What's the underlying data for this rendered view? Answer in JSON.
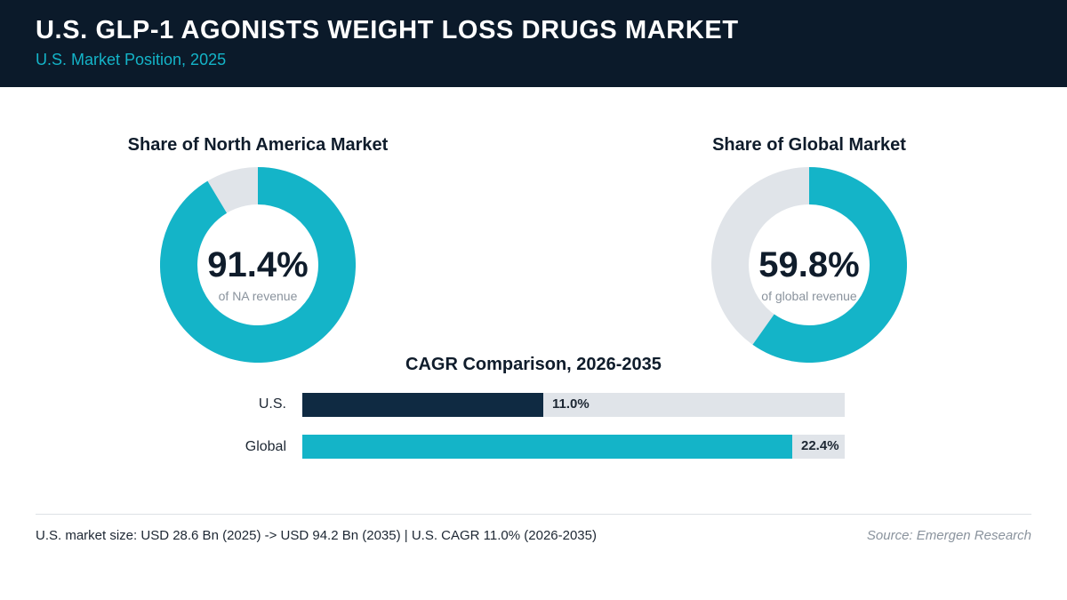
{
  "header": {
    "title": "U.S. GLP-1 AGONISTS WEIGHT LOSS DRUGS MARKET",
    "subtitle": "U.S. Market Position, 2025"
  },
  "colors": {
    "header_bg": "#0b1a2a",
    "accent": "#14b4c8",
    "navy": "#0f2a42",
    "track": "#e0e4e9"
  },
  "chart_data": [
    {
      "type": "pie",
      "title": "Share of North America Market",
      "value": 91.4,
      "value_label": "91.4%",
      "caption": "of NA revenue"
    },
    {
      "type": "pie",
      "title": "Share of Global Market",
      "value": 59.8,
      "value_label": "59.8%",
      "caption": "of global revenue"
    },
    {
      "type": "bar",
      "orientation": "horizontal",
      "title": "CAGR Comparison, 2026-2035",
      "categories": [
        "U.S.",
        "Global"
      ],
      "values": [
        11.0,
        22.4
      ],
      "value_labels": [
        "11.0%",
        "22.4%"
      ],
      "xlim": [
        0,
        24.8
      ]
    }
  ],
  "footer": {
    "note": "U.S. market size: USD 28.6 Bn (2025) -> USD 94.2 Bn (2035)  |  U.S. CAGR 11.0% (2026-2035)",
    "source": "Source: Emergen Research"
  }
}
